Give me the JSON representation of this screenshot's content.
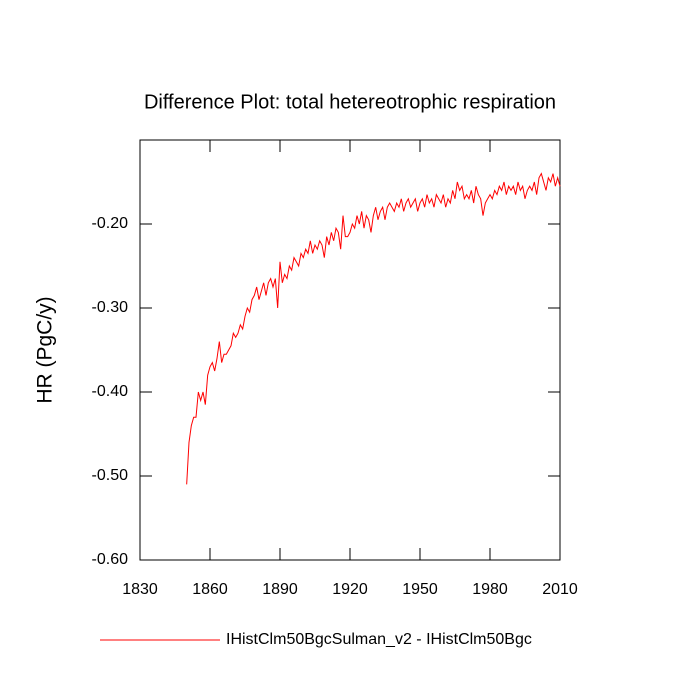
{
  "chart_data": {
    "type": "line",
    "title": "Difference Plot: total hetereotrophic respiration",
    "y_label": "HR  (PgC/y)",
    "xlim": [
      1830,
      2010
    ],
    "xticks": [
      1830,
      1860,
      1890,
      1920,
      1950,
      1980,
      2010
    ],
    "ylim": [
      -0.6,
      -0.1
    ],
    "yticks": [
      {
        "value": -0.6,
        "label": "-0.60"
      },
      {
        "value": -0.5,
        "label": "-0.50"
      },
      {
        "value": -0.4,
        "label": "-0.40"
      },
      {
        "value": -0.3,
        "label": "-0.30"
      },
      {
        "value": -0.2,
        "label": "-0.20"
      }
    ],
    "grid": false,
    "x": [
      1850,
      1851,
      1852,
      1853,
      1854,
      1855,
      1856,
      1857,
      1858,
      1859,
      1860,
      1861,
      1862,
      1863,
      1864,
      1865,
      1866,
      1867,
      1868,
      1869,
      1870,
      1871,
      1872,
      1873,
      1874,
      1875,
      1876,
      1877,
      1878,
      1879,
      1880,
      1881,
      1882,
      1883,
      1884,
      1885,
      1886,
      1887,
      1888,
      1889,
      1890,
      1891,
      1892,
      1893,
      1894,
      1895,
      1896,
      1897,
      1898,
      1899,
      1900,
      1901,
      1902,
      1903,
      1904,
      1905,
      1906,
      1907,
      1908,
      1909,
      1910,
      1911,
      1912,
      1913,
      1914,
      1915,
      1916,
      1917,
      1918,
      1919,
      1920,
      1921,
      1922,
      1923,
      1924,
      1925,
      1926,
      1927,
      1928,
      1929,
      1930,
      1931,
      1932,
      1933,
      1934,
      1935,
      1936,
      1937,
      1938,
      1939,
      1940,
      1941,
      1942,
      1943,
      1944,
      1945,
      1946,
      1947,
      1948,
      1949,
      1950,
      1951,
      1952,
      1953,
      1954,
      1955,
      1956,
      1957,
      1958,
      1959,
      1960,
      1961,
      1962,
      1963,
      1964,
      1965,
      1966,
      1967,
      1968,
      1969,
      1970,
      1971,
      1972,
      1973,
      1974,
      1975,
      1976,
      1977,
      1978,
      1979,
      1980,
      1981,
      1982,
      1983,
      1984,
      1985,
      1986,
      1987,
      1988,
      1989,
      1990,
      1991,
      1992,
      1993,
      1994,
      1995,
      1996,
      1997,
      1998,
      1999,
      2000,
      2001,
      2002,
      2003,
      2004,
      2005,
      2006,
      2007,
      2008,
      2009,
      2010
    ],
    "series": [
      {
        "name": "IHistClm50BgcSulman_v2 - IHistClm50Bgc",
        "color": "#ff0000",
        "values": [
          -0.51,
          -0.46,
          -0.44,
          -0.43,
          -0.43,
          -0.4,
          -0.41,
          -0.4,
          -0.415,
          -0.38,
          -0.37,
          -0.365,
          -0.375,
          -0.36,
          -0.34,
          -0.365,
          -0.355,
          -0.355,
          -0.35,
          -0.345,
          -0.33,
          -0.335,
          -0.33,
          -0.32,
          -0.325,
          -0.31,
          -0.3,
          -0.305,
          -0.29,
          -0.285,
          -0.275,
          -0.29,
          -0.28,
          -0.27,
          -0.285,
          -0.27,
          -0.265,
          -0.275,
          -0.265,
          -0.3,
          -0.245,
          -0.27,
          -0.26,
          -0.265,
          -0.25,
          -0.255,
          -0.24,
          -0.245,
          -0.25,
          -0.235,
          -0.24,
          -0.23,
          -0.235,
          -0.22,
          -0.235,
          -0.225,
          -0.23,
          -0.22,
          -0.225,
          -0.24,
          -0.215,
          -0.225,
          -0.21,
          -0.22,
          -0.205,
          -0.21,
          -0.23,
          -0.19,
          -0.215,
          -0.215,
          -0.21,
          -0.2,
          -0.205,
          -0.19,
          -0.2,
          -0.185,
          -0.205,
          -0.19,
          -0.195,
          -0.21,
          -0.19,
          -0.18,
          -0.195,
          -0.185,
          -0.18,
          -0.195,
          -0.18,
          -0.175,
          -0.18,
          -0.185,
          -0.175,
          -0.18,
          -0.17,
          -0.185,
          -0.175,
          -0.17,
          -0.18,
          -0.175,
          -0.17,
          -0.185,
          -0.175,
          -0.17,
          -0.18,
          -0.165,
          -0.175,
          -0.17,
          -0.18,
          -0.165,
          -0.17,
          -0.175,
          -0.165,
          -0.18,
          -0.17,
          -0.175,
          -0.16,
          -0.17,
          -0.15,
          -0.16,
          -0.155,
          -0.17,
          -0.165,
          -0.17,
          -0.16,
          -0.175,
          -0.155,
          -0.165,
          -0.17,
          -0.19,
          -0.175,
          -0.17,
          -0.165,
          -0.17,
          -0.16,
          -0.165,
          -0.155,
          -0.16,
          -0.15,
          -0.165,
          -0.155,
          -0.16,
          -0.155,
          -0.165,
          -0.15,
          -0.16,
          -0.155,
          -0.17,
          -0.16,
          -0.155,
          -0.16,
          -0.15,
          -0.165,
          -0.145,
          -0.14,
          -0.15,
          -0.16,
          -0.145,
          -0.15,
          -0.14,
          -0.155,
          -0.145,
          -0.155
        ]
      }
    ]
  }
}
